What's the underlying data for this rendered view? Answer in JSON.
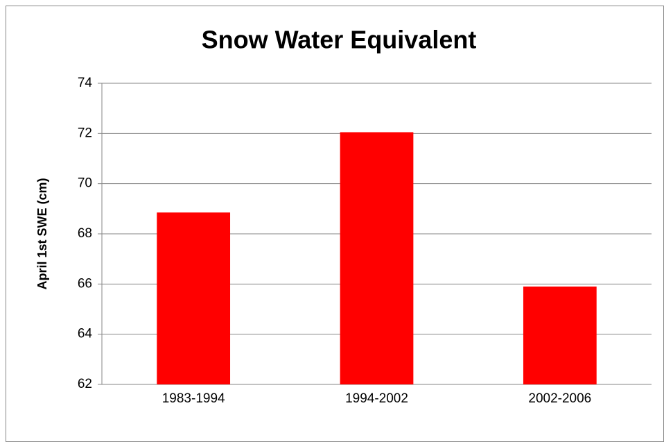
{
  "chart_data": {
    "type": "bar",
    "title": "Snow Water Equivalent",
    "y_label": "April 1st SWE (cm)",
    "categories": [
      "1983-1994",
      "1994-2002",
      "2002-2006"
    ],
    "values": [
      68.85,
      72.05,
      65.9
    ],
    "color": "#ff0000",
    "ylim": [
      62,
      74
    ],
    "yticks": [
      62,
      64,
      66,
      68,
      70,
      72,
      74
    ],
    "grid": true
  }
}
